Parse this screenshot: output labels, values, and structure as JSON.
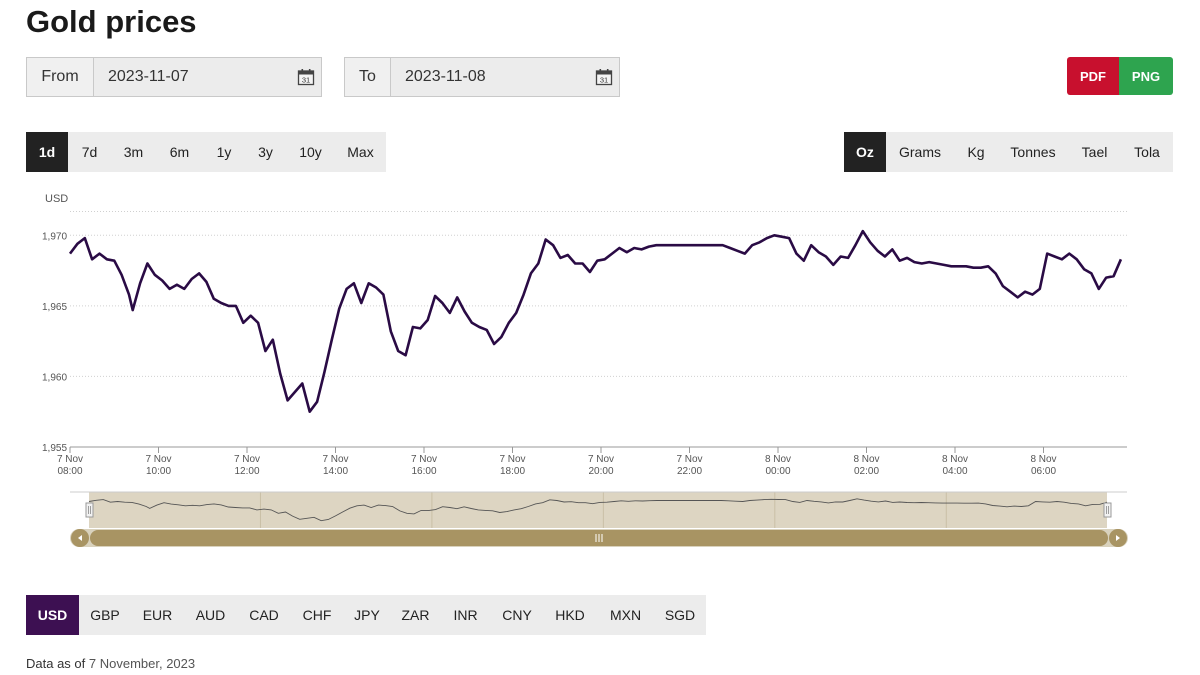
{
  "page_title": "Gold prices",
  "date_range": {
    "from_label": "From",
    "from_value": "2023-11-07",
    "to_label": "To",
    "to_value": "2023-11-08",
    "calendar_icon_text": "31"
  },
  "export": {
    "pdf_label": "PDF",
    "png_label": "PNG",
    "pdf_color": "#c8102e",
    "png_color": "#2ea44f"
  },
  "periods": [
    "1d",
    "7d",
    "3m",
    "6m",
    "1y",
    "3y",
    "10y",
    "Max"
  ],
  "active_period": "1d",
  "units": [
    "Oz",
    "Grams",
    "Kg",
    "Tonnes",
    "Tael",
    "Tola"
  ],
  "active_unit": "Oz",
  "currencies": [
    "USD",
    "GBP",
    "EUR",
    "AUD",
    "CAD",
    "CHF",
    "JPY",
    "ZAR",
    "INR",
    "CNY",
    "HKD",
    "MXN",
    "SGD"
  ],
  "active_currency": "USD",
  "footnote": {
    "prefix": "Data as of",
    "date": "7 November, 2023"
  },
  "colors": {
    "line": "#2a0b45",
    "navigator_fill": "#ddd5c2",
    "scrollbar": "#a89463",
    "active_currency": "#3d1052"
  },
  "chart_data": {
    "type": "line",
    "ylabel": "USD",
    "ylim": [
      1955,
      1972.5
    ],
    "yticks": [
      1955,
      1960,
      1965,
      1970
    ],
    "ytick_labels": [
      "1,955",
      "1,960",
      "1,965",
      "1,970"
    ],
    "xlim": [
      "2023-11-07 08:00",
      "2023-11-08 07:45"
    ],
    "xtick_labels": [
      {
        "day": "7 Nov",
        "time": "08:00"
      },
      {
        "day": "7 Nov",
        "time": "10:00"
      },
      {
        "day": "7 Nov",
        "time": "12:00"
      },
      {
        "day": "7 Nov",
        "time": "14:00"
      },
      {
        "day": "7 Nov",
        "time": "16:00"
      },
      {
        "day": "7 Nov",
        "time": "18:00"
      },
      {
        "day": "7 Nov",
        "time": "20:00"
      },
      {
        "day": "7 Nov",
        "time": "22:00"
      },
      {
        "day": "8 Nov",
        "time": "00:00"
      },
      {
        "day": "8 Nov",
        "time": "02:00"
      },
      {
        "day": "8 Nov",
        "time": "04:00"
      },
      {
        "day": "8 Nov",
        "time": "06:00"
      }
    ],
    "grid": true,
    "series": [
      {
        "name": "",
        "points": [
          [
            "2023-11-07 08:00",
            1968.7
          ],
          [
            "2023-11-07 08:10",
            1969.4
          ],
          [
            "2023-11-07 08:20",
            1969.8
          ],
          [
            "2023-11-07 08:30",
            1968.3
          ],
          [
            "2023-11-07 08:40",
            1968.7
          ],
          [
            "2023-11-07 08:50",
            1968.3
          ],
          [
            "2023-11-07 09:00",
            1968.2
          ],
          [
            "2023-11-07 09:10",
            1967.2
          ],
          [
            "2023-11-07 09:20",
            1965.8
          ],
          [
            "2023-11-07 09:25",
            1964.7
          ],
          [
            "2023-11-07 09:35",
            1966.6
          ],
          [
            "2023-11-07 09:45",
            1968.0
          ],
          [
            "2023-11-07 09:55",
            1967.2
          ],
          [
            "2023-11-07 10:05",
            1966.8
          ],
          [
            "2023-11-07 10:15",
            1966.2
          ],
          [
            "2023-11-07 10:25",
            1966.5
          ],
          [
            "2023-11-07 10:35",
            1966.2
          ],
          [
            "2023-11-07 10:45",
            1966.9
          ],
          [
            "2023-11-07 10:55",
            1967.3
          ],
          [
            "2023-11-07 11:05",
            1966.7
          ],
          [
            "2023-11-07 11:15",
            1965.5
          ],
          [
            "2023-11-07 11:25",
            1965.2
          ],
          [
            "2023-11-07 11:35",
            1965.0
          ],
          [
            "2023-11-07 11:45",
            1965.0
          ],
          [
            "2023-11-07 11:55",
            1963.8
          ],
          [
            "2023-11-07 12:05",
            1964.3
          ],
          [
            "2023-11-07 12:15",
            1963.8
          ],
          [
            "2023-11-07 12:25",
            1961.8
          ],
          [
            "2023-11-07 12:35",
            1962.6
          ],
          [
            "2023-11-07 12:45",
            1960.2
          ],
          [
            "2023-11-07 12:55",
            1958.3
          ],
          [
            "2023-11-07 13:05",
            1958.9
          ],
          [
            "2023-11-07 13:15",
            1959.5
          ],
          [
            "2023-11-07 13:25",
            1957.5
          ],
          [
            "2023-11-07 13:35",
            1958.2
          ],
          [
            "2023-11-07 13:45",
            1960.3
          ],
          [
            "2023-11-07 13:55",
            1962.6
          ],
          [
            "2023-11-07 14:05",
            1964.8
          ],
          [
            "2023-11-07 14:15",
            1966.2
          ],
          [
            "2023-11-07 14:25",
            1966.6
          ],
          [
            "2023-11-07 14:35",
            1965.2
          ],
          [
            "2023-11-07 14:45",
            1966.6
          ],
          [
            "2023-11-07 14:55",
            1966.3
          ],
          [
            "2023-11-07 15:05",
            1965.8
          ],
          [
            "2023-11-07 15:15",
            1963.2
          ],
          [
            "2023-11-07 15:25",
            1961.8
          ],
          [
            "2023-11-07 15:35",
            1961.5
          ],
          [
            "2023-11-07 15:45",
            1963.5
          ],
          [
            "2023-11-07 15:55",
            1963.4
          ],
          [
            "2023-11-07 16:05",
            1964.0
          ],
          [
            "2023-11-07 16:15",
            1965.7
          ],
          [
            "2023-11-07 16:25",
            1965.2
          ],
          [
            "2023-11-07 16:35",
            1964.5
          ],
          [
            "2023-11-07 16:45",
            1965.6
          ],
          [
            "2023-11-07 16:55",
            1964.6
          ],
          [
            "2023-11-07 17:05",
            1963.8
          ],
          [
            "2023-11-07 17:15",
            1963.5
          ],
          [
            "2023-11-07 17:25",
            1963.3
          ],
          [
            "2023-11-07 17:35",
            1962.3
          ],
          [
            "2023-11-07 17:45",
            1962.8
          ],
          [
            "2023-11-07 17:55",
            1963.8
          ],
          [
            "2023-11-07 18:05",
            1964.5
          ],
          [
            "2023-11-07 18:15",
            1965.8
          ],
          [
            "2023-11-07 18:25",
            1967.3
          ],
          [
            "2023-11-07 18:35",
            1968.0
          ],
          [
            "2023-11-07 18:45",
            1969.7
          ],
          [
            "2023-11-07 18:55",
            1969.3
          ],
          [
            "2023-11-07 19:05",
            1968.4
          ],
          [
            "2023-11-07 19:15",
            1968.6
          ],
          [
            "2023-11-07 19:25",
            1968.0
          ],
          [
            "2023-11-07 19:35",
            1968.0
          ],
          [
            "2023-11-07 19:45",
            1967.4
          ],
          [
            "2023-11-07 19:55",
            1968.2
          ],
          [
            "2023-11-07 20:05",
            1968.3
          ],
          [
            "2023-11-07 20:15",
            1968.7
          ],
          [
            "2023-11-07 20:25",
            1969.1
          ],
          [
            "2023-11-07 20:35",
            1968.8
          ],
          [
            "2023-11-07 20:45",
            1969.1
          ],
          [
            "2023-11-07 20:55",
            1969.0
          ],
          [
            "2023-11-07 21:05",
            1969.2
          ],
          [
            "2023-11-07 21:15",
            1969.3
          ],
          [
            "2023-11-07 21:25",
            1969.3
          ],
          [
            "2023-11-07 21:35",
            1969.3
          ],
          [
            "2023-11-07 21:45",
            1969.3
          ],
          [
            "2023-11-07 21:55",
            1969.3
          ],
          [
            "2023-11-07 22:05",
            1969.3
          ],
          [
            "2023-11-07 22:15",
            1969.3
          ],
          [
            "2023-11-07 22:25",
            1969.3
          ],
          [
            "2023-11-07 22:35",
            1969.3
          ],
          [
            "2023-11-07 22:45",
            1969.3
          ],
          [
            "2023-11-07 22:55",
            1969.1
          ],
          [
            "2023-11-07 23:05",
            1968.9
          ],
          [
            "2023-11-07 23:15",
            1968.7
          ],
          [
            "2023-11-07 23:25",
            1969.3
          ],
          [
            "2023-11-07 23:35",
            1969.5
          ],
          [
            "2023-11-07 23:45",
            1969.8
          ],
          [
            "2023-11-07 23:55",
            1970.0
          ],
          [
            "2023-11-08 00:05",
            1969.9
          ],
          [
            "2023-11-08 00:15",
            1969.8
          ],
          [
            "2023-11-08 00:25",
            1968.7
          ],
          [
            "2023-11-08 00:35",
            1968.2
          ],
          [
            "2023-11-08 00:45",
            1969.3
          ],
          [
            "2023-11-08 00:55",
            1968.8
          ],
          [
            "2023-11-08 01:05",
            1968.5
          ],
          [
            "2023-11-08 01:15",
            1967.9
          ],
          [
            "2023-11-08 01:25",
            1968.5
          ],
          [
            "2023-11-08 01:35",
            1968.4
          ],
          [
            "2023-11-08 01:45",
            1969.3
          ],
          [
            "2023-11-08 01:55",
            1970.3
          ],
          [
            "2023-11-08 02:05",
            1969.5
          ],
          [
            "2023-11-08 02:15",
            1968.9
          ],
          [
            "2023-11-08 02:25",
            1968.5
          ],
          [
            "2023-11-08 02:35",
            1969.0
          ],
          [
            "2023-11-08 02:45",
            1968.2
          ],
          [
            "2023-11-08 02:55",
            1968.4
          ],
          [
            "2023-11-08 03:05",
            1968.1
          ],
          [
            "2023-11-08 03:15",
            1968.0
          ],
          [
            "2023-11-08 03:25",
            1968.1
          ],
          [
            "2023-11-08 03:35",
            1968.0
          ],
          [
            "2023-11-08 03:45",
            1967.9
          ],
          [
            "2023-11-08 03:55",
            1967.8
          ],
          [
            "2023-11-08 04:05",
            1967.8
          ],
          [
            "2023-11-08 04:15",
            1967.8
          ],
          [
            "2023-11-08 04:25",
            1967.7
          ],
          [
            "2023-11-08 04:35",
            1967.7
          ],
          [
            "2023-11-08 04:45",
            1967.8
          ],
          [
            "2023-11-08 04:55",
            1967.3
          ],
          [
            "2023-11-08 05:05",
            1966.4
          ],
          [
            "2023-11-08 05:15",
            1966.0
          ],
          [
            "2023-11-08 05:25",
            1965.6
          ],
          [
            "2023-11-08 05:35",
            1966.0
          ],
          [
            "2023-11-08 05:45",
            1965.8
          ],
          [
            "2023-11-08 05:55",
            1966.2
          ],
          [
            "2023-11-08 06:05",
            1968.7
          ],
          [
            "2023-11-08 06:15",
            1968.5
          ],
          [
            "2023-11-08 06:25",
            1968.3
          ],
          [
            "2023-11-08 06:35",
            1968.7
          ],
          [
            "2023-11-08 06:45",
            1968.3
          ],
          [
            "2023-11-08 06:55",
            1967.6
          ],
          [
            "2023-11-08 07:05",
            1967.3
          ],
          [
            "2023-11-08 07:15",
            1966.2
          ],
          [
            "2023-11-08 07:25",
            1967.0
          ],
          [
            "2023-11-08 07:35",
            1967.1
          ],
          [
            "2023-11-08 07:45",
            1968.3
          ]
        ]
      }
    ]
  }
}
